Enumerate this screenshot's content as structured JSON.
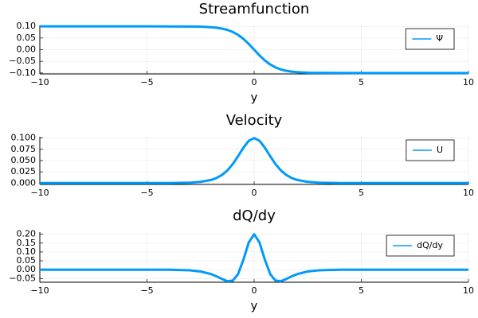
{
  "chart_data": [
    {
      "type": "line",
      "title": "Streamfunction",
      "xlabel": "y",
      "x": [
        -10,
        -8,
        -6,
        -5,
        -4,
        -3,
        -2.5,
        -2,
        -1.75,
        -1.5,
        -1.25,
        -1,
        -0.75,
        -0.5,
        -0.25,
        0,
        0.25,
        0.5,
        0.75,
        1,
        1.25,
        1.5,
        1.75,
        2,
        2.5,
        3,
        4,
        5,
        6,
        8,
        10
      ],
      "series": [
        {
          "name": "Ψ",
          "color": "#009af9",
          "values": [
            0.1,
            0.1,
            0.1,
            0.1,
            0.0999,
            0.0995,
            0.0987,
            0.0964,
            0.0941,
            0.0905,
            0.0848,
            0.0762,
            0.0635,
            0.0462,
            0.0245,
            0,
            -0.0245,
            -0.0462,
            -0.0635,
            -0.0762,
            -0.0848,
            -0.0905,
            -0.0941,
            -0.0964,
            -0.0987,
            -0.0995,
            -0.0999,
            -0.1,
            -0.1,
            -0.1,
            -0.1
          ]
        }
      ],
      "xlim": [
        -10,
        10
      ],
      "ylim": [
        -0.104,
        0.104
      ],
      "xticks": [
        {
          "value": -10,
          "label": "−10"
        },
        {
          "value": -5,
          "label": "−5"
        },
        0,
        5,
        10
      ],
      "yticks": [
        {
          "value": 0.1,
          "label": "0.10"
        },
        {
          "value": 0.05,
          "label": "0.05"
        },
        {
          "value": 0,
          "label": "0.00"
        },
        {
          "value": -0.05,
          "label": "−0.05"
        },
        {
          "value": -0.1,
          "label": "−0.10"
        }
      ],
      "grid": true,
      "legend": "top-right"
    },
    {
      "type": "line",
      "title": "Velocity",
      "x": [
        -10,
        -8,
        -6,
        -5,
        -4,
        -3,
        -2.5,
        -2,
        -1.75,
        -1.5,
        -1.25,
        -1,
        -0.75,
        -0.5,
        -0.25,
        0,
        0.25,
        0.5,
        0.75,
        1,
        1.25,
        1.5,
        1.75,
        2,
        2.5,
        3,
        4,
        5,
        6,
        8,
        10
      ],
      "series": [
        {
          "name": "U",
          "color": "#009af9",
          "values": [
            0,
            0,
            0,
            0,
            0.0001,
            0.001,
            0.0027,
            0.0071,
            0.0114,
            0.0181,
            0.028,
            0.042,
            0.0597,
            0.0786,
            0.094,
            0.1,
            0.094,
            0.0786,
            0.0597,
            0.042,
            0.028,
            0.0181,
            0.0114,
            0.0071,
            0.0027,
            0.001,
            0.0001,
            0,
            0,
            0,
            0
          ]
        }
      ],
      "xlim": [
        -10,
        10
      ],
      "ylim": [
        -0.003,
        0.103
      ],
      "xticks": [
        {
          "value": -10,
          "label": "−10"
        },
        {
          "value": -5,
          "label": "−5"
        },
        0,
        5,
        10
      ],
      "yticks": [
        {
          "value": 0.1,
          "label": "0.100"
        },
        {
          "value": 0.075,
          "label": "0.075"
        },
        {
          "value": 0.05,
          "label": "0.050"
        },
        {
          "value": 0.025,
          "label": "0.025"
        },
        {
          "value": 0,
          "label": "0.000"
        }
      ],
      "grid": true,
      "legend": "top-right"
    },
    {
      "type": "line",
      "title": "dQ/dy",
      "xlabel": "y",
      "x": [
        -10,
        -8,
        -6,
        -5,
        -4,
        -3,
        -2.5,
        -2,
        -1.75,
        -1.5,
        -1.25,
        -1,
        -0.75,
        -0.5,
        -0.25,
        0,
        0.25,
        0.5,
        0.75,
        1,
        1.25,
        1.5,
        1.75,
        2,
        2.5,
        3,
        4,
        5,
        6,
        8,
        10
      ],
      "series": [
        {
          "name": "dQ/dy",
          "color": "#009af9",
          "values": [
            0,
            0,
            0,
            -0.0001,
            -0.0005,
            -0.0039,
            -0.0102,
            -0.0253,
            -0.0377,
            -0.0527,
            -0.065,
            -0.0621,
            -0.0251,
            0.0565,
            0.1541,
            0.2,
            0.1541,
            0.0565,
            -0.0251,
            -0.0621,
            -0.065,
            -0.0527,
            -0.0377,
            -0.0253,
            -0.0102,
            -0.0039,
            -0.0005,
            -0.0001,
            0,
            0,
            0
          ]
        }
      ],
      "xlim": [
        -10,
        10
      ],
      "ylim": [
        -0.071,
        0.212
      ],
      "xticks": [
        {
          "value": -10,
          "label": "−10"
        },
        {
          "value": -5,
          "label": "−5"
        },
        0,
        5,
        10
      ],
      "yticks": [
        {
          "value": 0.2,
          "label": "0.20"
        },
        {
          "value": 0.15,
          "label": "0.15"
        },
        {
          "value": 0.1,
          "label": "0.10"
        },
        {
          "value": 0.05,
          "label": "0.05"
        },
        {
          "value": 0,
          "label": "0.00"
        },
        {
          "value": -0.05,
          "label": "−0.05"
        }
      ],
      "grid": true,
      "legend": "top-right"
    }
  ]
}
